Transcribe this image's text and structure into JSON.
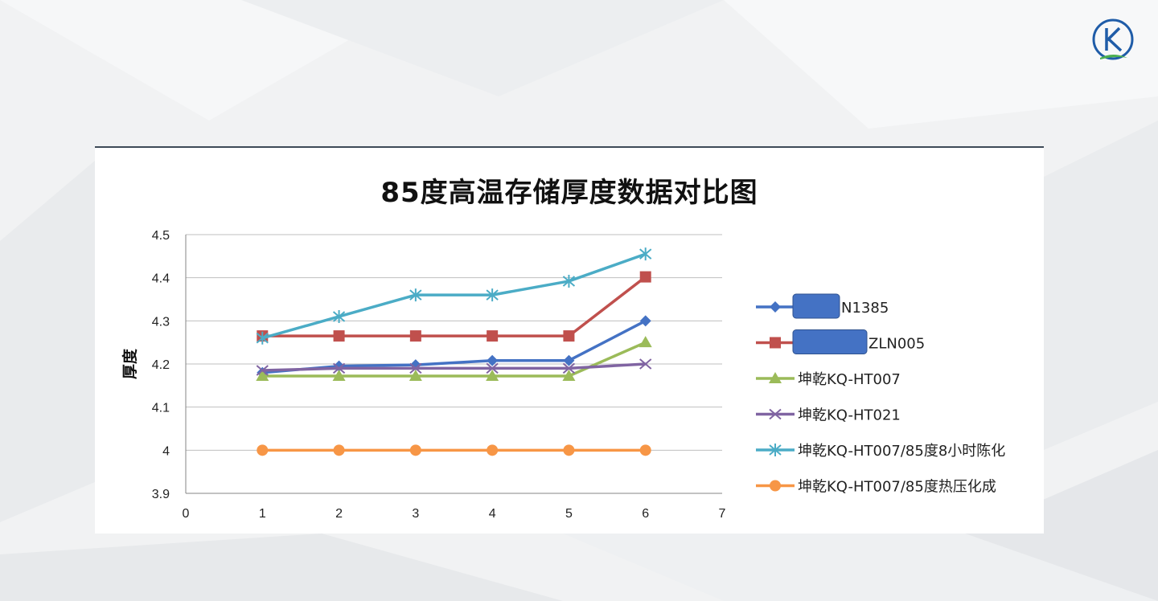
{
  "chart_data": {
    "type": "line",
    "title": "85度高温存储厚度数据对比图",
    "xlabel": "",
    "ylabel": "厚度",
    "x": [
      1,
      2,
      3,
      4,
      5,
      6
    ],
    "xlim": [
      0,
      7
    ],
    "ylim": [
      3.9,
      4.5
    ],
    "x_ticks": [
      "0",
      "1",
      "2",
      "3",
      "4",
      "5",
      "6",
      "7"
    ],
    "y_ticks": [
      "3.9",
      "4",
      "4.1",
      "4.2",
      "4.3",
      "4.4",
      "4.5"
    ],
    "grid": "horizontal",
    "legend": "right",
    "series": [
      {
        "name": "N1385",
        "color": "#4472c4",
        "marker": "diamond",
        "values": [
          4.18,
          4.195,
          4.198,
          4.208,
          4.208,
          4.3
        ]
      },
      {
        "name": "ZLN005",
        "color": "#c0504d",
        "marker": "square",
        "values": [
          4.265,
          4.265,
          4.265,
          4.265,
          4.265,
          4.402
        ]
      },
      {
        "name": "坤乾KQ-HT007",
        "color": "#9bbb59",
        "marker": "triangle",
        "values": [
          4.172,
          4.172,
          4.172,
          4.172,
          4.172,
          4.25
        ]
      },
      {
        "name": "坤乾KQ-HT021",
        "color": "#8064a2",
        "marker": "x",
        "values": [
          4.185,
          4.19,
          4.19,
          4.19,
          4.19,
          4.2
        ]
      },
      {
        "name": "坤乾KQ-HT007/85度8小时陈化",
        "color": "#4bacc6",
        "marker": "star",
        "values": [
          4.26,
          4.31,
          4.36,
          4.36,
          4.392,
          4.455
        ]
      },
      {
        "name": "坤乾KQ-HT007/85度热压化成",
        "color": "#f79646",
        "marker": "circle",
        "values": [
          4.0,
          4.0,
          4.0,
          4.0,
          4.0,
          4.0
        ]
      }
    ],
    "legend_redacted": [
      true,
      true,
      false,
      false,
      false,
      false
    ],
    "redaction_color": "#4472c4"
  }
}
